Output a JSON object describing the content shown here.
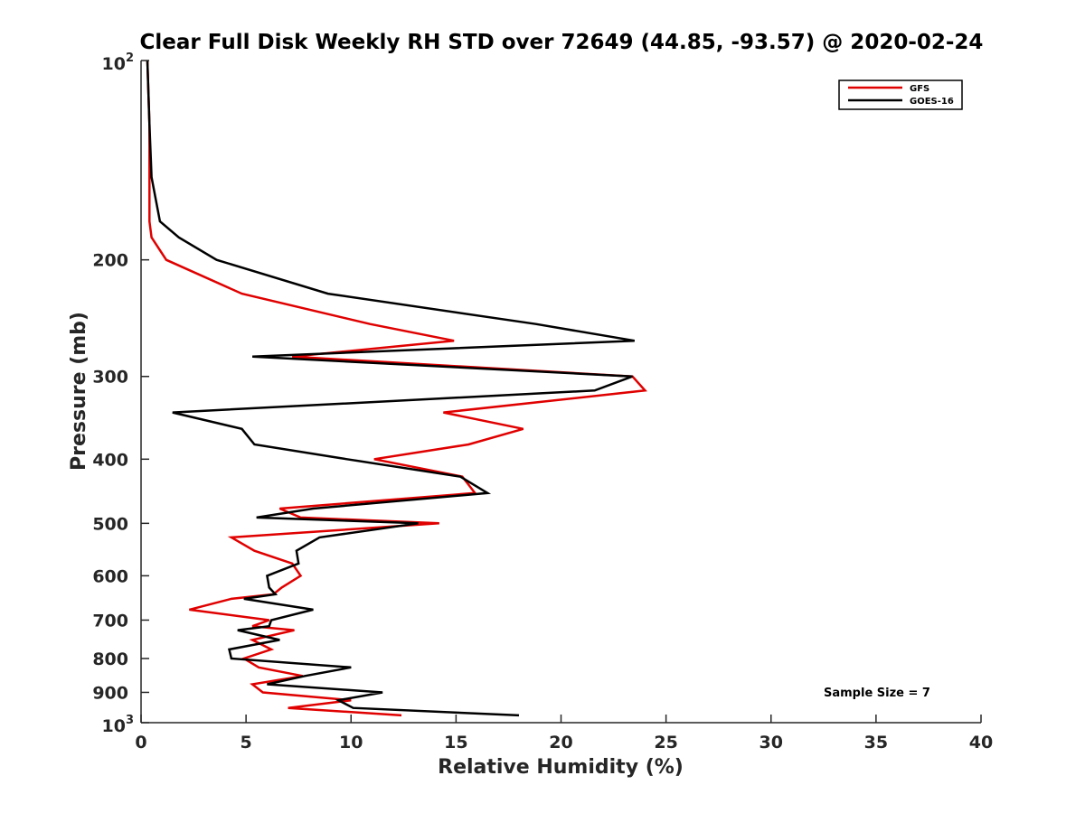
{
  "chart_data": {
    "type": "line",
    "title": "Clear Full Disk Weekly RH STD over 72649 (44.85, -93.57) @ 2020-02-24",
    "xlabel": "Relative Humidity (%)",
    "ylabel": "Pressure (mb)",
    "xlim": [
      0,
      40
    ],
    "ylim": [
      100,
      1000
    ],
    "y_scale": "log",
    "y_reversed": true,
    "x_ticks": [
      "0",
      "5",
      "10",
      "15",
      "20",
      "25",
      "30",
      "35",
      "40"
    ],
    "y_ticks": [
      {
        "value": 100,
        "base": "10",
        "exp": "2"
      },
      {
        "value": 200,
        "label": "200"
      },
      {
        "value": 300,
        "label": "300"
      },
      {
        "value": 400,
        "label": "400"
      },
      {
        "value": 500,
        "label": "500"
      },
      {
        "value": 600,
        "label": "600"
      },
      {
        "value": 700,
        "label": "700"
      },
      {
        "value": 800,
        "label": "800"
      },
      {
        "value": 900,
        "label": "900"
      },
      {
        "value": 1000,
        "base": "10",
        "exp": "3"
      }
    ],
    "legend_position": "top-right",
    "annotation": "Sample Size = 7",
    "series": [
      {
        "name": "GFS",
        "color": "#e00000",
        "points": [
          [
            0.3,
            100
          ],
          [
            0.4,
            125
          ],
          [
            0.4,
            150
          ],
          [
            0.4,
            175
          ],
          [
            0.5,
            185
          ],
          [
            1.2,
            200
          ],
          [
            4.8,
            225
          ],
          [
            10.9,
            250
          ],
          [
            14.9,
            265
          ],
          [
            7.2,
            280
          ],
          [
            23.4,
            300
          ],
          [
            24.0,
            315
          ],
          [
            14.4,
            340
          ],
          [
            18.2,
            360
          ],
          [
            15.6,
            380
          ],
          [
            11.1,
            400
          ],
          [
            15.3,
            425
          ],
          [
            15.9,
            450
          ],
          [
            6.6,
            475
          ],
          [
            7.6,
            490
          ],
          [
            14.2,
            500
          ],
          [
            4.3,
            525
          ],
          [
            5.4,
            550
          ],
          [
            7.2,
            575
          ],
          [
            7.6,
            600
          ],
          [
            6.7,
            625
          ],
          [
            6.3,
            640
          ],
          [
            4.3,
            650
          ],
          [
            2.3,
            675
          ],
          [
            6.1,
            700
          ],
          [
            5.3,
            715
          ],
          [
            7.3,
            725
          ],
          [
            5.3,
            750
          ],
          [
            6.2,
            775
          ],
          [
            4.9,
            800
          ],
          [
            5.6,
            825
          ],
          [
            7.7,
            850
          ],
          [
            5.3,
            875
          ],
          [
            5.8,
            900
          ],
          [
            10.0,
            925
          ],
          [
            7.0,
            950
          ],
          [
            12.4,
            975
          ]
        ]
      },
      {
        "name": "GOES-16",
        "color": "#000000",
        "points": [
          [
            0.3,
            100
          ],
          [
            0.4,
            125
          ],
          [
            0.5,
            150
          ],
          [
            0.9,
            175
          ],
          [
            1.8,
            185
          ],
          [
            3.6,
            200
          ],
          [
            8.9,
            225
          ],
          [
            18.8,
            250
          ],
          [
            23.5,
            265
          ],
          [
            5.3,
            280
          ],
          [
            23.4,
            300
          ],
          [
            21.6,
            315
          ],
          [
            1.5,
            340
          ],
          [
            4.8,
            360
          ],
          [
            5.4,
            380
          ],
          [
            9.8,
            400
          ],
          [
            15.2,
            425
          ],
          [
            16.5,
            450
          ],
          [
            8.2,
            475
          ],
          [
            5.5,
            490
          ],
          [
            13.2,
            500
          ],
          [
            8.5,
            525
          ],
          [
            7.4,
            550
          ],
          [
            7.5,
            575
          ],
          [
            6.0,
            600
          ],
          [
            6.1,
            625
          ],
          [
            6.4,
            640
          ],
          [
            4.9,
            650
          ],
          [
            8.2,
            675
          ],
          [
            6.2,
            700
          ],
          [
            6.1,
            715
          ],
          [
            4.6,
            725
          ],
          [
            6.6,
            750
          ],
          [
            4.2,
            775
          ],
          [
            4.3,
            800
          ],
          [
            10.0,
            825
          ],
          [
            7.8,
            850
          ],
          [
            6.0,
            875
          ],
          [
            11.5,
            900
          ],
          [
            9.4,
            925
          ],
          [
            10.1,
            950
          ],
          [
            18.0,
            975
          ]
        ]
      }
    ]
  }
}
